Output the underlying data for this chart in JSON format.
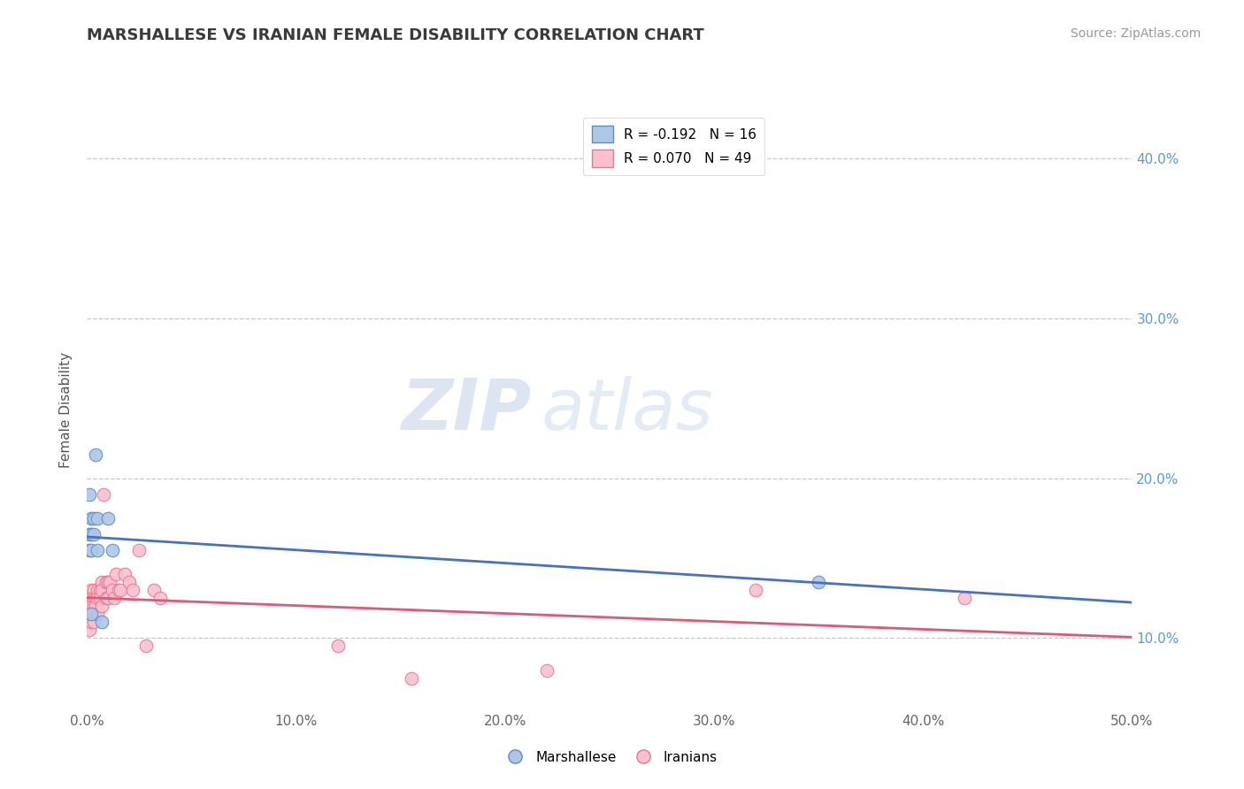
{
  "title": "MARSHALLESE VS IRANIAN FEMALE DISABILITY CORRELATION CHART",
  "source": "Source: ZipAtlas.com",
  "ylabel": "Female Disability",
  "xlim": [
    0.0,
    0.5
  ],
  "ylim": [
    0.055,
    0.43
  ],
  "xtick_vals": [
    0.0,
    0.1,
    0.2,
    0.3,
    0.4,
    0.5
  ],
  "xtick_labels": [
    "0.0%",
    "10.0%",
    "20.0%",
    "30.0%",
    "40.0%",
    "50.0%"
  ],
  "ytick_vals": [
    0.1,
    0.2,
    0.3,
    0.4
  ],
  "right_ytick_labels": [
    "10.0%",
    "20.0%",
    "30.0%",
    "40.0%"
  ],
  "grid_color": "#c8c8c8",
  "background_color": "#ffffff",
  "blue_fill": "#aec6e8",
  "pink_fill": "#f9c0cf",
  "blue_edge": "#5b8ec9",
  "pink_edge": "#e8788f",
  "blue_line": "#4472c4",
  "pink_line": "#e05878",
  "legend_r_blue": "R = -0.192",
  "legend_n_blue": "N = 16",
  "legend_r_pink": "R = 0.070",
  "legend_n_pink": "N = 49",
  "marshallese_x": [
    0.001,
    0.001,
    0.001,
    0.002,
    0.002,
    0.002,
    0.002,
    0.003,
    0.003,
    0.004,
    0.005,
    0.005,
    0.007,
    0.01,
    0.012,
    0.35
  ],
  "marshallese_y": [
    0.19,
    0.165,
    0.155,
    0.175,
    0.165,
    0.155,
    0.115,
    0.175,
    0.165,
    0.215,
    0.175,
    0.155,
    0.11,
    0.175,
    0.155,
    0.135
  ],
  "iranians_x": [
    0.001,
    0.001,
    0.001,
    0.001,
    0.001,
    0.001,
    0.002,
    0.002,
    0.002,
    0.002,
    0.003,
    0.003,
    0.003,
    0.003,
    0.003,
    0.003,
    0.004,
    0.004,
    0.005,
    0.005,
    0.005,
    0.006,
    0.006,
    0.007,
    0.007,
    0.007,
    0.008,
    0.009,
    0.009,
    0.01,
    0.01,
    0.011,
    0.012,
    0.013,
    0.014,
    0.015,
    0.016,
    0.018,
    0.02,
    0.022,
    0.025,
    0.028,
    0.032,
    0.035,
    0.12,
    0.155,
    0.22,
    0.32,
    0.42
  ],
  "iranians_y": [
    0.125,
    0.12,
    0.115,
    0.115,
    0.11,
    0.105,
    0.13,
    0.125,
    0.12,
    0.11,
    0.13,
    0.125,
    0.12,
    0.115,
    0.115,
    0.11,
    0.125,
    0.12,
    0.13,
    0.125,
    0.115,
    0.13,
    0.125,
    0.135,
    0.13,
    0.12,
    0.19,
    0.135,
    0.125,
    0.135,
    0.125,
    0.135,
    0.13,
    0.125,
    0.14,
    0.13,
    0.13,
    0.14,
    0.135,
    0.13,
    0.155,
    0.095,
    0.13,
    0.125,
    0.095,
    0.075,
    0.08,
    0.13,
    0.125
  ]
}
